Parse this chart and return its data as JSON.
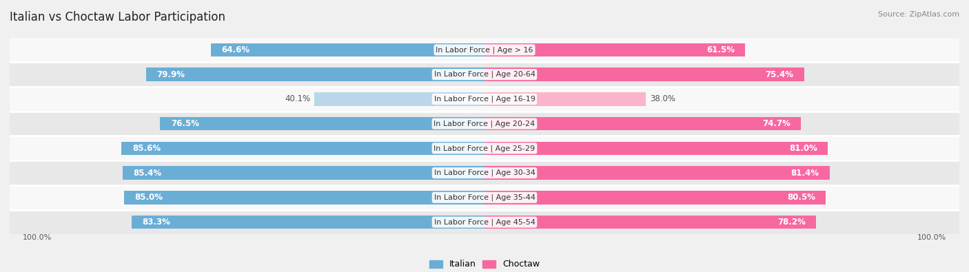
{
  "title": "Italian vs Choctaw Labor Participation",
  "source": "Source: ZipAtlas.com",
  "categories": [
    "In Labor Force | Age > 16",
    "In Labor Force | Age 20-64",
    "In Labor Force | Age 16-19",
    "In Labor Force | Age 20-24",
    "In Labor Force | Age 25-29",
    "In Labor Force | Age 30-34",
    "In Labor Force | Age 35-44",
    "In Labor Force | Age 45-54"
  ],
  "italian_values": [
    64.6,
    79.9,
    40.1,
    76.5,
    85.6,
    85.4,
    85.0,
    83.3
  ],
  "choctaw_values": [
    61.5,
    75.4,
    38.0,
    74.7,
    81.0,
    81.4,
    80.5,
    78.2
  ],
  "italian_color": "#6aaed6",
  "italian_light_color": "#bad6ea",
  "choctaw_color": "#f768a1",
  "choctaw_light_color": "#fbb4ca",
  "background_color": "#f0f0f0",
  "row_light_color": "#f8f8f8",
  "row_dark_color": "#e8e8e8",
  "light_threshold": 50,
  "max_value": 100.0,
  "bar_height": 0.55,
  "legend_italian_color": "#6aaed6",
  "legend_choctaw_color": "#f768a1",
  "label_fontsize": 8.5,
  "category_fontsize": 8.0,
  "title_fontsize": 12
}
